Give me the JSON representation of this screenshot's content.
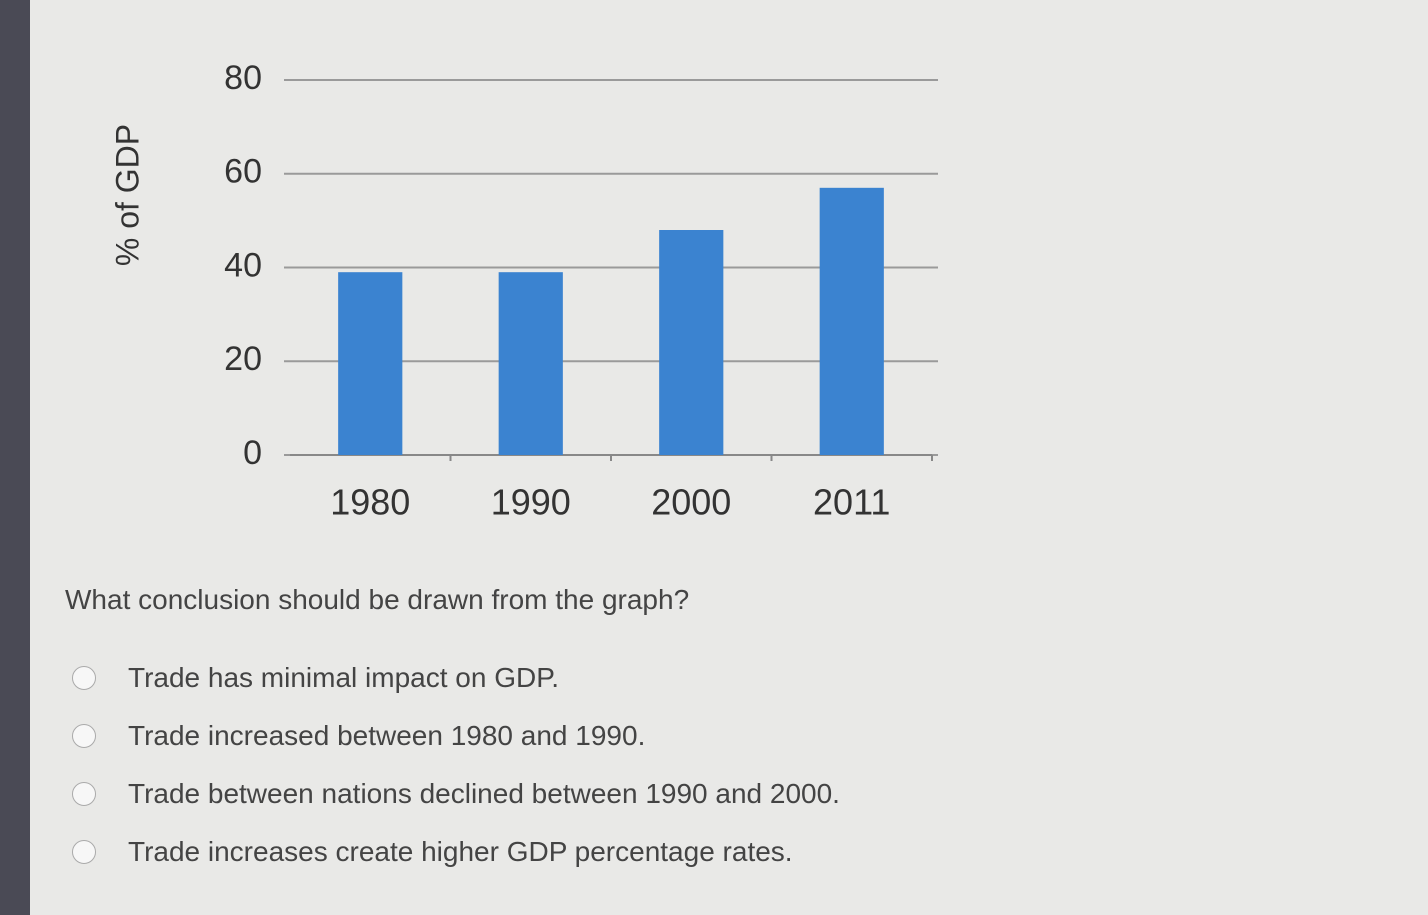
{
  "chart_data": {
    "type": "bar",
    "y_label": "% of GDP",
    "categories": [
      "1980",
      "1990",
      "2000",
      "2011"
    ],
    "values": [
      39,
      39,
      48,
      57
    ],
    "color": "#3b83d0",
    "ylim": [
      0,
      80
    ],
    "yticks": [
      0,
      20,
      40,
      60,
      80
    ],
    "grid": true
  },
  "question": "What conclusion should be drawn from the graph?",
  "options": [
    "Trade has minimal impact on GDP.",
    "Trade increased between 1980 and 1990.",
    "Trade between nations declined between 1990 and 2000.",
    "Trade increases create higher GDP percentage rates."
  ]
}
